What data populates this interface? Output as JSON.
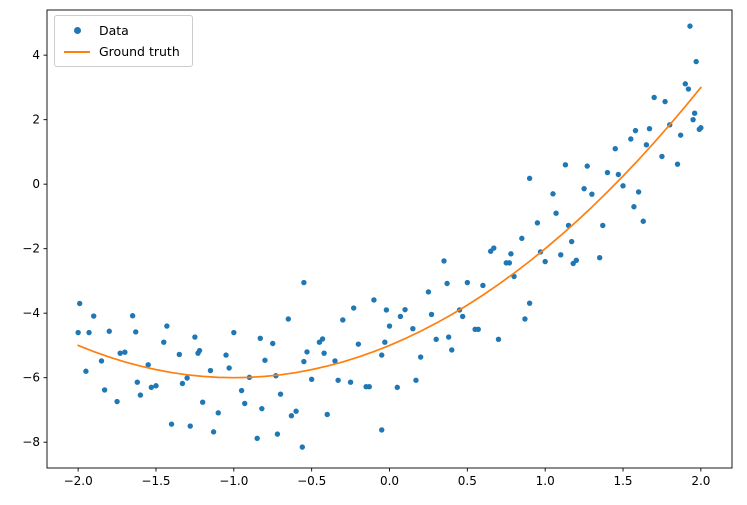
{
  "figure": {
    "background": "#ffffff"
  },
  "chart_data": {
    "type": "scatter",
    "title": "",
    "xlabel": "",
    "ylabel": "",
    "grid": false,
    "xlim": [
      -2.2,
      2.2
    ],
    "ylim": [
      -8.8,
      5.4
    ],
    "x_ticks": [
      -2.0,
      -1.5,
      -1.0,
      -0.5,
      0.0,
      0.5,
      1.0,
      1.5,
      2.0
    ],
    "x_tick_labels": [
      "−2.0",
      "−1.5",
      "−1.0",
      "−0.5",
      "0.0",
      "0.5",
      "1.0",
      "1.5",
      "2.0"
    ],
    "y_ticks": [
      -8,
      -6,
      -4,
      -2,
      0,
      2,
      4
    ],
    "y_tick_labels": [
      "−8",
      "−6",
      "−4",
      "−2",
      "0",
      "2",
      "4"
    ],
    "legend": {
      "position": "upper left",
      "items": [
        {
          "label": "Data",
          "type": "marker",
          "color": "#1f77b4"
        },
        {
          "label": "Ground truth",
          "type": "line",
          "color": "#ff7f0e"
        }
      ]
    },
    "series": [
      {
        "name": "Data",
        "type": "scatter",
        "color": "#1f77b4",
        "marker_size": 2.7,
        "points": [
          [
            -2.0,
            -4.6
          ],
          [
            -1.95,
            -5.8
          ],
          [
            -1.9,
            -4.09
          ],
          [
            -1.85,
            -5.48
          ],
          [
            -1.8,
            -4.56
          ],
          [
            -1.75,
            -6.74
          ],
          [
            -1.7,
            -5.21
          ],
          [
            -1.65,
            -4.08
          ],
          [
            -1.6,
            -6.54
          ],
          [
            -1.55,
            -5.6
          ],
          [
            -1.5,
            -6.25
          ],
          [
            -1.45,
            -4.9
          ],
          [
            -1.4,
            -7.44
          ],
          [
            -1.35,
            -5.28
          ],
          [
            -1.3,
            -6.01
          ],
          [
            -1.25,
            -4.74
          ],
          [
            -1.2,
            -6.76
          ],
          [
            -1.15,
            -5.78
          ],
          [
            -1.1,
            -7.09
          ],
          [
            -1.05,
            -5.3
          ],
          [
            -1.0,
            -4.6
          ],
          [
            -0.95,
            -6.4
          ],
          [
            -0.9,
            -5.99
          ],
          [
            -0.85,
            -7.88
          ],
          [
            -0.8,
            -5.46
          ],
          [
            -0.75,
            -4.94
          ],
          [
            -0.7,
            -6.51
          ],
          [
            -0.65,
            -4.18
          ],
          [
            -0.6,
            -7.04
          ],
          [
            -0.55,
            -5.5
          ],
          [
            -0.5,
            -6.05
          ],
          [
            -0.45,
            -4.9
          ],
          [
            -0.4,
            -7.14
          ],
          [
            -0.35,
            -5.48
          ],
          [
            -0.3,
            -4.21
          ],
          [
            -0.25,
            -6.14
          ],
          [
            -0.2,
            -4.96
          ],
          [
            -0.15,
            -6.28
          ],
          [
            -0.1,
            -3.59
          ],
          [
            -0.05,
            -5.3
          ],
          [
            0.0,
            -4.4
          ],
          [
            0.05,
            -6.3
          ],
          [
            0.1,
            -3.89
          ],
          [
            0.15,
            -4.48
          ],
          [
            0.2,
            -5.36
          ],
          [
            0.25,
            -3.34
          ],
          [
            0.3,
            -4.81
          ],
          [
            0.35,
            -2.38
          ],
          [
            0.4,
            -5.14
          ],
          [
            0.45,
            -3.9
          ],
          [
            0.5,
            -3.05
          ],
          [
            0.55,
            -4.5
          ],
          [
            0.6,
            -3.14
          ],
          [
            0.65,
            -2.08
          ],
          [
            0.7,
            -4.81
          ],
          [
            0.75,
            -2.44
          ],
          [
            0.8,
            -2.86
          ],
          [
            0.85,
            -1.68
          ],
          [
            0.9,
            -3.69
          ],
          [
            0.95,
            -1.2
          ],
          [
            1.0,
            -2.4
          ],
          [
            1.05,
            -0.3
          ],
          [
            1.1,
            -2.19
          ],
          [
            1.15,
            -1.28
          ],
          [
            1.2,
            -2.36
          ],
          [
            1.25,
            -0.14
          ],
          [
            1.3,
            -0.31
          ],
          [
            1.35,
            -2.28
          ],
          [
            1.4,
            0.36
          ],
          [
            1.45,
            1.1
          ],
          [
            1.5,
            -0.05
          ],
          [
            1.55,
            1.4
          ],
          [
            1.6,
            -0.24
          ],
          [
            1.65,
            1.22
          ],
          [
            1.7,
            2.69
          ],
          [
            1.75,
            0.86
          ],
          [
            1.8,
            1.84
          ],
          [
            1.85,
            0.62
          ],
          [
            1.9,
            3.11
          ],
          [
            1.95,
            2.0
          ],
          [
            2.0,
            1.75
          ],
          [
            -1.93,
            -4.6
          ],
          [
            -1.83,
            -6.38
          ],
          [
            -1.73,
            -5.24
          ],
          [
            -1.63,
            -4.58
          ],
          [
            -1.53,
            -6.3
          ],
          [
            -1.43,
            -4.4
          ],
          [
            -1.33,
            -6.18
          ],
          [
            -1.23,
            -5.24
          ],
          [
            -1.13,
            -7.68
          ],
          [
            -1.03,
            -5.7
          ],
          [
            -0.93,
            -6.8
          ],
          [
            -0.83,
            -4.78
          ],
          [
            -0.73,
            -5.94
          ],
          [
            -0.63,
            -7.18
          ],
          [
            -0.53,
            -5.2
          ],
          [
            -0.43,
            -4.8
          ],
          [
            -0.33,
            -6.08
          ],
          [
            -0.23,
            -3.84
          ],
          [
            -0.13,
            -6.28
          ],
          [
            -0.03,
            -4.9
          ],
          [
            0.07,
            -4.1
          ],
          [
            0.17,
            -6.08
          ],
          [
            0.27,
            -4.04
          ],
          [
            0.37,
            -3.08
          ],
          [
            0.47,
            -4.1
          ],
          [
            0.57,
            -4.5
          ],
          [
            0.67,
            -1.98
          ],
          [
            0.77,
            -2.44
          ],
          [
            0.87,
            -4.18
          ],
          [
            0.97,
            -2.1
          ],
          [
            1.07,
            -0.9
          ],
          [
            1.17,
            -1.78
          ],
          [
            1.27,
            0.56
          ],
          [
            1.37,
            -1.28
          ],
          [
            1.47,
            0.3
          ],
          [
            1.57,
            -0.7
          ],
          [
            1.67,
            1.72
          ],
          [
            1.77,
            2.56
          ],
          [
            1.87,
            1.52
          ],
          [
            1.92,
            2.95
          ],
          [
            -1.99,
            -3.7
          ],
          [
            -1.62,
            -6.14
          ],
          [
            -1.22,
            -5.16
          ],
          [
            -0.82,
            -6.96
          ],
          [
            -0.42,
            -5.24
          ],
          [
            -0.02,
            -3.9
          ],
          [
            0.38,
            -4.74
          ],
          [
            0.78,
            -2.16
          ],
          [
            1.18,
            -2.46
          ],
          [
            1.58,
            1.66
          ],
          [
            1.96,
            2.2
          ],
          [
            -0.56,
            -8.15
          ],
          [
            -0.72,
            -7.75
          ],
          [
            -0.55,
            -3.05
          ],
          [
            -0.05,
            -7.62
          ],
          [
            -1.28,
            -7.5
          ],
          [
            0.9,
            0.18
          ],
          [
            1.13,
            0.6
          ],
          [
            1.93,
            4.9
          ],
          [
            1.97,
            3.8
          ],
          [
            1.99,
            1.7
          ],
          [
            1.63,
            -1.15
          ]
        ]
      },
      {
        "name": "Ground truth",
        "type": "line",
        "color": "#ff7f0e",
        "line_width": 1.7,
        "points": [
          [
            -2.0,
            -5.0
          ],
          [
            -1.9,
            -5.19
          ],
          [
            -1.8,
            -5.36
          ],
          [
            -1.7,
            -5.51
          ],
          [
            -1.6,
            -5.64
          ],
          [
            -1.5,
            -5.75
          ],
          [
            -1.4,
            -5.84
          ],
          [
            -1.3,
            -5.91
          ],
          [
            -1.2,
            -5.96
          ],
          [
            -1.1,
            -5.99
          ],
          [
            -1.0,
            -6.0
          ],
          [
            -0.9,
            -5.99
          ],
          [
            -0.8,
            -5.96
          ],
          [
            -0.7,
            -5.91
          ],
          [
            -0.6,
            -5.84
          ],
          [
            -0.5,
            -5.75
          ],
          [
            -0.4,
            -5.64
          ],
          [
            -0.3,
            -5.51
          ],
          [
            -0.2,
            -5.36
          ],
          [
            -0.1,
            -5.19
          ],
          [
            0.0,
            -5.0
          ],
          [
            0.1,
            -4.79
          ],
          [
            0.2,
            -4.56
          ],
          [
            0.3,
            -4.31
          ],
          [
            0.4,
            -4.04
          ],
          [
            0.5,
            -3.75
          ],
          [
            0.6,
            -3.44
          ],
          [
            0.7,
            -3.11
          ],
          [
            0.8,
            -2.76
          ],
          [
            0.9,
            -2.39
          ],
          [
            1.0,
            -2.0
          ],
          [
            1.1,
            -1.59
          ],
          [
            1.2,
            -1.16
          ],
          [
            1.3,
            -0.71
          ],
          [
            1.4,
            -0.24
          ],
          [
            1.5,
            0.25
          ],
          [
            1.6,
            0.76
          ],
          [
            1.7,
            1.29
          ],
          [
            1.8,
            1.84
          ],
          [
            1.9,
            2.41
          ],
          [
            2.0,
            3.0
          ]
        ]
      }
    ]
  }
}
